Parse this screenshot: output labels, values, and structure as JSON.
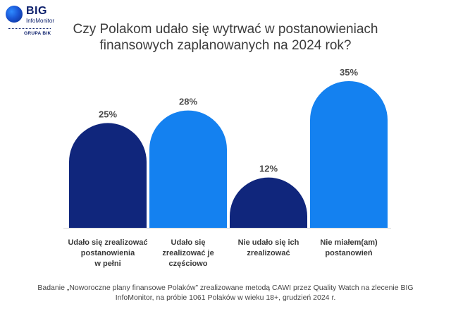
{
  "logo": {
    "big": "BIG",
    "sub": "InfoMonitor",
    "grupa": "GRUPA BIK"
  },
  "title": "Czy Polakom udało się wytrwać w postanowieniach finansowych zaplanowanych na 2024 rok?",
  "footnote": "Badanie „Noworoczne plany finansowe Polaków” zrealizowane metodą CAWI przez Quality Watch na zlecenie BIG InfoMonitor, na próbie 1061 Polaków w wieku 18+, grudzień 2024 r.",
  "chart_data": {
    "type": "bar",
    "categories": [
      [
        "Udało się zrealizować",
        "postanowienia",
        "w pełni"
      ],
      [
        "Udało się",
        "zrealizować je",
        "częściowo"
      ],
      [
        "Nie udało się ich",
        "zrealizować"
      ],
      [
        "Nie miałem(am)",
        "postanowień"
      ]
    ],
    "values": [
      25,
      28,
      12,
      35
    ],
    "value_labels": [
      "25%",
      "28%",
      "12%",
      "35%"
    ],
    "colors": [
      "#10267c",
      "#1481f0",
      "#10267c",
      "#1481f0"
    ],
    "unit": "%",
    "ylim": [
      0,
      35
    ],
    "grid": false,
    "legend": "none"
  }
}
